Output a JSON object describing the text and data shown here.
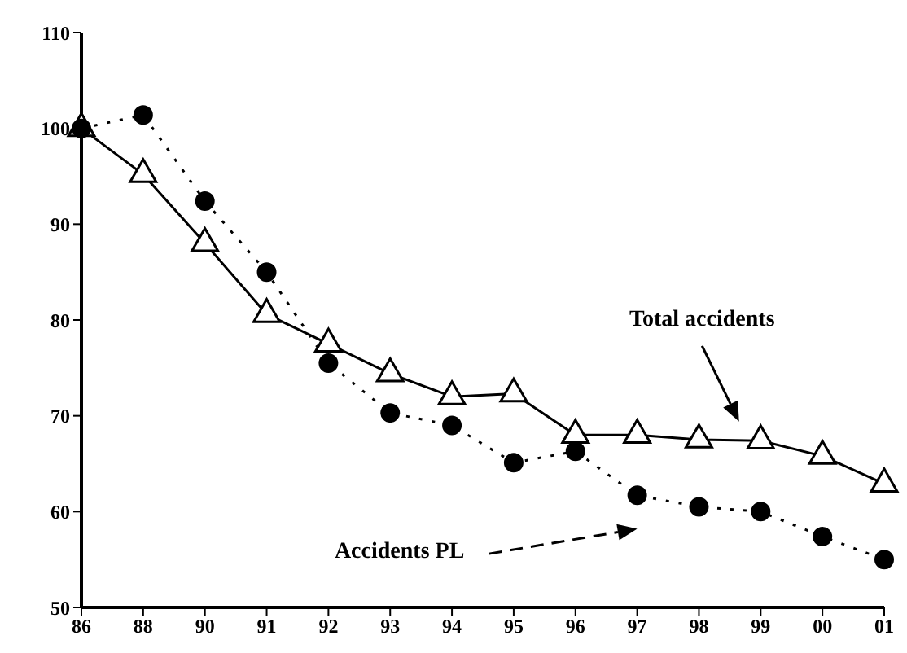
{
  "chart_data": {
    "type": "line",
    "categories": [
      "86",
      "88",
      "90",
      "91",
      "92",
      "93",
      "94",
      "95",
      "96",
      "97",
      "98",
      "99",
      "00",
      "01"
    ],
    "series": [
      {
        "color": "#000000",
        "marker": "triangle",
        "line_style": "solid",
        "values": [
          100,
          95.2,
          88,
          80.6,
          77.5,
          74.4,
          72,
          72.3,
          68,
          68,
          67.5,
          67.4,
          65.8,
          62.9
        ]
      },
      {
        "color": "#000000",
        "marker": "circle",
        "line_style": "dotted",
        "values": [
          100,
          101.4,
          92.4,
          85,
          75.5,
          70.3,
          69,
          65.1,
          66.3,
          61.7,
          60.5,
          60,
          57.4,
          55
        ]
      }
    ],
    "ylim": [
      50,
      110
    ],
    "yticks": [
      50,
      60,
      70,
      80,
      90,
      100,
      110
    ],
    "annotations": [
      "Total accidents",
      "Accidents PL"
    ],
    "grid": false,
    "legend": false
  }
}
